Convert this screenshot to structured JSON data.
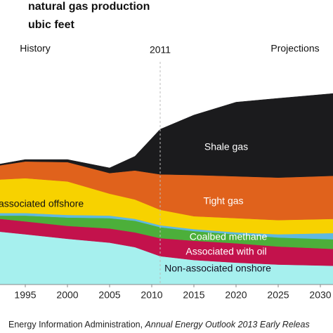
{
  "chart_data": {
    "type": "stacked_area",
    "title": "natural gas production",
    "subtitle": "ubic feet",
    "x": [
      1992,
      1995,
      2000,
      2005,
      2008,
      2011,
      2015,
      2020,
      2025,
      2032
    ],
    "xlim": [
      1992,
      2031.5
    ],
    "xticks": [
      1995,
      2000,
      2005,
      2010,
      2015,
      2020,
      2025,
      2030
    ],
    "ylim": [
      0,
      35
    ],
    "series": [
      {
        "name": "Non-associated onshore",
        "color": "#a6f0ee",
        "values": [
          8.2,
          7.8,
          7.1,
          6.5,
          5.8,
          4.4,
          3.8,
          3.4,
          3.1,
          2.9
        ]
      },
      {
        "name": "Associated with oil",
        "color": "#c3124c",
        "values": [
          2.0,
          2.0,
          2.0,
          2.2,
          2.3,
          2.8,
          3.0,
          3.0,
          2.8,
          2.6
        ]
      },
      {
        "name": "Coalbed methane",
        "color": "#4caf3a",
        "values": [
          0.5,
          0.9,
          1.3,
          1.6,
          1.8,
          1.7,
          1.5,
          1.4,
          1.4,
          1.5
        ]
      },
      {
        "color": "#5fb8e0",
        "values": [
          0.4,
          0.4,
          0.4,
          0.4,
          0.3,
          0.3,
          0.3,
          0.3,
          0.5,
          1.0
        ]
      },
      {
        "name": "associated offshore",
        "color": "#f7d200",
        "values": [
          5.2,
          5.4,
          5.2,
          3.4,
          3.0,
          2.4,
          2.0,
          2.2,
          2.2,
          2.2
        ]
      },
      {
        "name": "Tight gas",
        "color": "#e0621c",
        "values": [
          2.2,
          2.6,
          3.0,
          3.2,
          4.5,
          5.5,
          6.4,
          6.5,
          6.6,
          6.7
        ]
      },
      {
        "name": "Shale gas",
        "color": "#1b1b1d",
        "values": [
          0.2,
          0.3,
          0.4,
          0.8,
          2.2,
          7.0,
          9.3,
          11.5,
          12.3,
          12.8
        ]
      }
    ],
    "annotations": [
      "History",
      "2011",
      "Projections"
    ],
    "divider_x": 2011,
    "source": [
      "Energy Information Administration, ",
      "Annual Energy Outlook 2013 Early Releas"
    ]
  }
}
